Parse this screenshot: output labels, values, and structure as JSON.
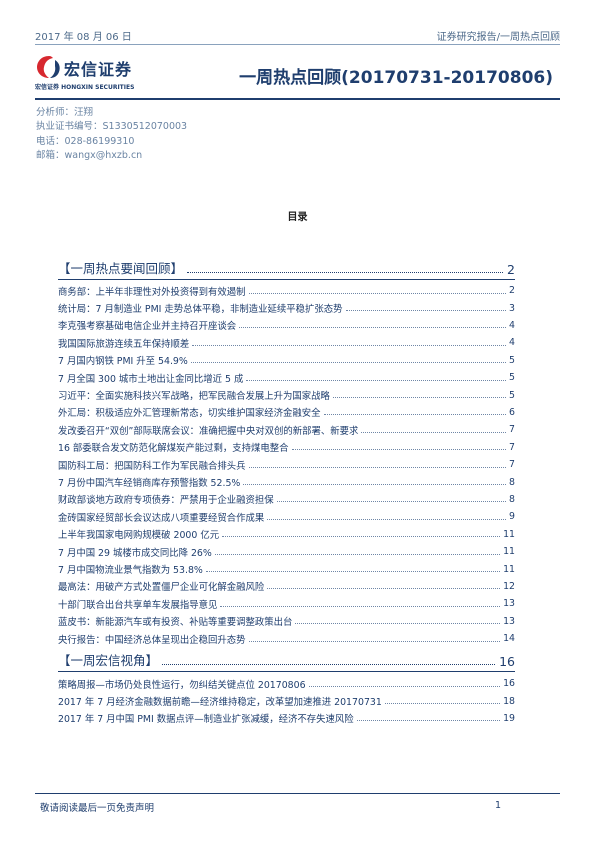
{
  "header": {
    "date": "2017 年 08 月 06 日",
    "category": "证券研究报告/一周热点回顾"
  },
  "logo": {
    "cn": "宏信证券",
    "en": "宏信证券 HONGXIN SECURITIES"
  },
  "title": "一周热点回顾(20170731-20170806)",
  "analyst": {
    "name_line": "分析师：汪翔",
    "license_line": "执业证书编号：S1330512070003",
    "phone_line": "电话：028-86199310",
    "email_line": "邮箱：wangx@hxzb.cn"
  },
  "toc": {
    "heading": "目录",
    "sections": [
      {
        "title": "【一周热点要闻回顾】",
        "page": "2",
        "items": [
          {
            "label": "商务部：上半年非理性对外投资得到有效遏制",
            "page": "2"
          },
          {
            "label": "统计局：7 月制造业 PMI 走势总体平稳，非制造业延续平稳扩张态势",
            "page": "3"
          },
          {
            "label": "李克强考察基础电信企业并主持召开座谈会",
            "page": "4"
          },
          {
            "label": "我国国际旅游连续五年保持顺差",
            "page": "4"
          },
          {
            "label": "7 月国内钢铁 PMI 升至 54.9%",
            "page": "5"
          },
          {
            "label": "7 月全国 300 城市土地出让金同比增近 5 成",
            "page": "5"
          },
          {
            "label": "习近平：全面实施科技兴军战略，把军民融合发展上升为国家战略",
            "page": "5"
          },
          {
            "label": "外汇局：积极适应外汇管理新常态，切实维护国家经济金融安全",
            "page": "6"
          },
          {
            "label": "发改委召开“双创”部际联席会议：准确把握中央对双创的新部署、新要求",
            "page": "7"
          },
          {
            "label": "16 部委联合发文防范化解煤炭产能过剩，支持煤电整合",
            "page": "7"
          },
          {
            "label": "国防科工局：把国防科工作为军民融合排头兵",
            "page": "7"
          },
          {
            "label": "7 月份中国汽车经销商库存预警指数 52.5%",
            "page": "8"
          },
          {
            "label": "财政部谈地方政府专项债券：严禁用于企业融资担保",
            "page": "8"
          },
          {
            "label": "金砖国家经贸部长会议达成八项重要经贸合作成果",
            "page": "9"
          },
          {
            "label": "上半年我国家电网购规模破 2000 亿元",
            "page": "11"
          },
          {
            "label": "7 月中国 29 城楼市成交同比降 26%",
            "page": "11"
          },
          {
            "label": "7 月中国物流业景气指数为 53.8%",
            "page": "11"
          },
          {
            "label": "最高法：用破产方式处置僵尸企业可化解金融风险",
            "page": "12"
          },
          {
            "label": "十部门联合出台共享单车发展指导意见",
            "page": "13"
          },
          {
            "label": "蓝皮书：新能源汽车或有投资、补贴等重要调整政策出台",
            "page": "13"
          },
          {
            "label": "央行报告：中国经济总体呈现出企稳回升态势",
            "page": "14"
          }
        ]
      },
      {
        "title": "【一周宏信视角】",
        "page": "16",
        "items": [
          {
            "label": "策略周报—市场仍处良性运行，勿纠结关键点位 20170806",
            "page": "16"
          },
          {
            "label": "2017 年 7 月经济金融数据前瞻—经济维持稳定，改革望加速推进 20170731",
            "page": "18"
          },
          {
            "label": "2017 年 7 月中国 PMI 数据点评—制造业扩张减缓，经济不存失速风险",
            "page": "19"
          }
        ]
      }
    ]
  },
  "footer": {
    "note": "敬请阅读最后一页免责声明",
    "page": "1"
  },
  "colors": {
    "brand_navy": "#1f3e6e",
    "logo_red": "#d7282f",
    "analyst_blue": "#6a84a3"
  }
}
